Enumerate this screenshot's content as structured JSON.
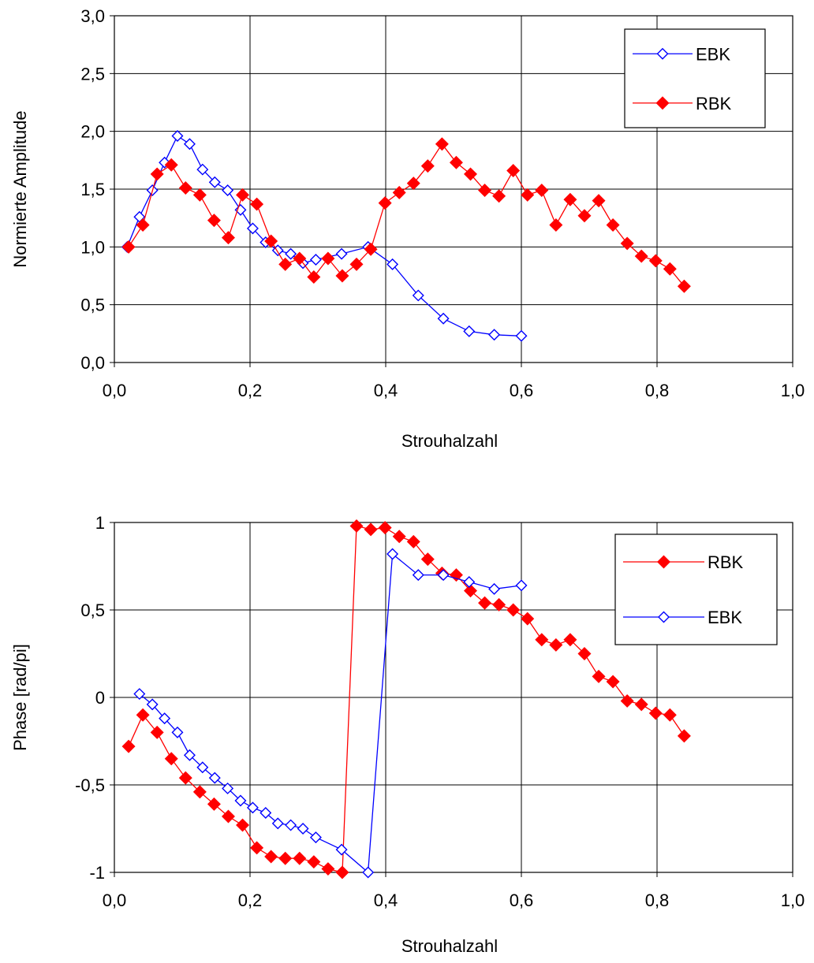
{
  "chart_data": [
    {
      "type": "line",
      "xlabel": "Strouhalzahl",
      "ylabel": "Normierte Amplitude",
      "xlim": [
        0.0,
        1.0
      ],
      "ylim": [
        0.0,
        3.0
      ],
      "x_ticks": [
        0.0,
        0.2,
        0.4,
        0.6,
        0.8,
        1.0
      ],
      "x_tick_labels": [
        "0,0",
        "0,2",
        "0,4",
        "0,6",
        "0,8",
        "1,0"
      ],
      "y_ticks": [
        0.0,
        0.5,
        1.0,
        1.5,
        2.0,
        2.5,
        3.0
      ],
      "y_tick_labels": [
        "0,0",
        "0,5",
        "1,0",
        "1,5",
        "2,0",
        "2,5",
        "3,0"
      ],
      "grid": true,
      "legend": "top-right",
      "series": [
        {
          "name": "EBK",
          "color": "#0000ff",
          "marker": "diamond-open",
          "points": [
            [
              0.019,
              1.0
            ],
            [
              0.037,
              1.26
            ],
            [
              0.056,
              1.49
            ],
            [
              0.074,
              1.73
            ],
            [
              0.093,
              1.96
            ],
            [
              0.111,
              1.89
            ],
            [
              0.13,
              1.67
            ],
            [
              0.148,
              1.56
            ],
            [
              0.167,
              1.49
            ],
            [
              0.186,
              1.32
            ],
            [
              0.204,
              1.16
            ],
            [
              0.223,
              1.04
            ],
            [
              0.241,
              0.97
            ],
            [
              0.26,
              0.94
            ],
            [
              0.278,
              0.86
            ],
            [
              0.297,
              0.89
            ],
            [
              0.335,
              0.94
            ],
            [
              0.374,
              1.0
            ],
            [
              0.41,
              0.85
            ],
            [
              0.448,
              0.58
            ],
            [
              0.485,
              0.38
            ],
            [
              0.523,
              0.27
            ],
            [
              0.56,
              0.24
            ],
            [
              0.6,
              0.23
            ]
          ]
        },
        {
          "name": "RBK",
          "color": "#ff0000",
          "marker": "diamond-filled",
          "points": [
            [
              0.021,
              1.0
            ],
            [
              0.042,
              1.19
            ],
            [
              0.063,
              1.63
            ],
            [
              0.084,
              1.71
            ],
            [
              0.105,
              1.51
            ],
            [
              0.126,
              1.45
            ],
            [
              0.147,
              1.23
            ],
            [
              0.168,
              1.08
            ],
            [
              0.189,
              1.45
            ],
            [
              0.21,
              1.37
            ],
            [
              0.231,
              1.05
            ],
            [
              0.252,
              0.85
            ],
            [
              0.273,
              0.9
            ],
            [
              0.294,
              0.74
            ],
            [
              0.315,
              0.9
            ],
            [
              0.336,
              0.75
            ],
            [
              0.357,
              0.85
            ],
            [
              0.378,
              0.98
            ],
            [
              0.399,
              1.38
            ],
            [
              0.42,
              1.47
            ],
            [
              0.441,
              1.55
            ],
            [
              0.462,
              1.7
            ],
            [
              0.483,
              1.89
            ],
            [
              0.504,
              1.73
            ],
            [
              0.525,
              1.63
            ],
            [
              0.546,
              1.49
            ],
            [
              0.567,
              1.44
            ],
            [
              0.588,
              1.66
            ],
            [
              0.609,
              1.45
            ],
            [
              0.63,
              1.49
            ],
            [
              0.651,
              1.19
            ],
            [
              0.672,
              1.41
            ],
            [
              0.693,
              1.27
            ],
            [
              0.714,
              1.4
            ],
            [
              0.735,
              1.19
            ],
            [
              0.756,
              1.03
            ],
            [
              0.777,
              0.92
            ],
            [
              0.798,
              0.88
            ],
            [
              0.819,
              0.81
            ],
            [
              0.84,
              0.66
            ]
          ]
        }
      ]
    },
    {
      "type": "line",
      "xlabel": "Strouhalzahl",
      "ylabel": "Phase [rad/pi]",
      "xlim": [
        0.0,
        1.0
      ],
      "ylim": [
        -1.0,
        1.0
      ],
      "x_ticks": [
        0.0,
        0.2,
        0.4,
        0.6,
        0.8,
        1.0
      ],
      "x_tick_labels": [
        "0,0",
        "0,2",
        "0,4",
        "0,6",
        "0,8",
        "1,0"
      ],
      "y_ticks": [
        -1.0,
        -0.5,
        0.0,
        0.5,
        1.0
      ],
      "y_tick_labels": [
        "-1",
        "-0,5",
        "0",
        "0,5",
        "1"
      ],
      "grid": true,
      "legend": "top-right",
      "series": [
        {
          "name": "RBK",
          "color": "#ff0000",
          "marker": "diamond-filled",
          "points": [
            [
              0.021,
              -0.28
            ],
            [
              0.042,
              -0.1
            ],
            [
              0.063,
              -0.2
            ],
            [
              0.084,
              -0.35
            ],
            [
              0.105,
              -0.46
            ],
            [
              0.126,
              -0.54
            ],
            [
              0.147,
              -0.61
            ],
            [
              0.168,
              -0.68
            ],
            [
              0.189,
              -0.73
            ],
            [
              0.21,
              -0.86
            ],
            [
              0.231,
              -0.91
            ],
            [
              0.252,
              -0.92
            ],
            [
              0.273,
              -0.92
            ],
            [
              0.294,
              -0.94
            ],
            [
              0.315,
              -0.98
            ],
            [
              0.336,
              -1.0
            ],
            [
              0.357,
              0.98
            ],
            [
              0.378,
              0.96
            ],
            [
              0.399,
              0.97
            ],
            [
              0.42,
              0.92
            ],
            [
              0.441,
              0.89
            ],
            [
              0.462,
              0.79
            ],
            [
              0.483,
              0.71
            ],
            [
              0.504,
              0.7
            ],
            [
              0.525,
              0.61
            ],
            [
              0.546,
              0.54
            ],
            [
              0.567,
              0.53
            ],
            [
              0.588,
              0.5
            ],
            [
              0.609,
              0.45
            ],
            [
              0.63,
              0.33
            ],
            [
              0.651,
              0.3
            ],
            [
              0.672,
              0.33
            ],
            [
              0.693,
              0.25
            ],
            [
              0.714,
              0.12
            ],
            [
              0.735,
              0.09
            ],
            [
              0.756,
              -0.02
            ],
            [
              0.777,
              -0.04
            ],
            [
              0.798,
              -0.09
            ],
            [
              0.819,
              -0.1
            ],
            [
              0.84,
              -0.22
            ]
          ]
        },
        {
          "name": "EBK",
          "color": "#0000ff",
          "marker": "diamond-open",
          "points": [
            [
              0.037,
              0.02
            ],
            [
              0.056,
              -0.04
            ],
            [
              0.074,
              -0.12
            ],
            [
              0.093,
              -0.2
            ],
            [
              0.111,
              -0.33
            ],
            [
              0.13,
              -0.4
            ],
            [
              0.148,
              -0.46
            ],
            [
              0.167,
              -0.52
            ],
            [
              0.186,
              -0.59
            ],
            [
              0.204,
              -0.63
            ],
            [
              0.223,
              -0.66
            ],
            [
              0.241,
              -0.72
            ],
            [
              0.26,
              -0.73
            ],
            [
              0.278,
              -0.75
            ],
            [
              0.297,
              -0.8
            ],
            [
              0.335,
              -0.87
            ],
            [
              0.374,
              -1.0
            ],
            [
              0.41,
              0.82
            ],
            [
              0.448,
              0.7
            ],
            [
              0.485,
              0.7
            ],
            [
              0.523,
              0.66
            ],
            [
              0.56,
              0.62
            ],
            [
              0.6,
              0.64
            ]
          ]
        }
      ]
    }
  ]
}
